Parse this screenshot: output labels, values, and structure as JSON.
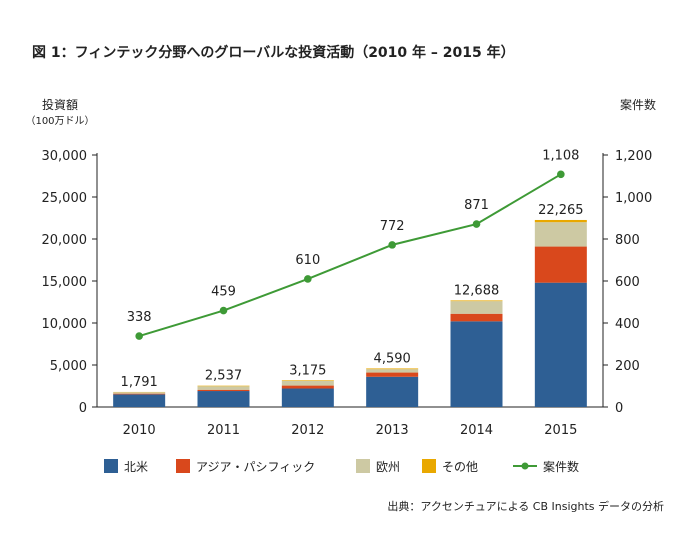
{
  "figure": {
    "title": "図 1：フィンテック分野へのグローバルな投資活動（2010 年 – 2015 年）",
    "source": "出典：アクセンチュアによる CB Insights データの分析"
  },
  "chart_data": {
    "type": "bar",
    "stacked": true,
    "categories": [
      "2010",
      "2011",
      "2012",
      "2013",
      "2014",
      "2015"
    ],
    "series": [
      {
        "name": "北米",
        "color": "#2e5f94",
        "values": [
          1500,
          1900,
          2200,
          3600,
          10200,
          14800
        ]
      },
      {
        "name": "アジア・パシフィック",
        "color": "#d9481c",
        "values": [
          90,
          150,
          350,
          500,
          900,
          4300
        ]
      },
      {
        "name": "欧州",
        "color": "#cdc9a3",
        "values": [
          170,
          420,
          550,
          400,
          1500,
          2900
        ]
      },
      {
        "name": "その他",
        "color": "#e9a800",
        "values": [
          31,
          67,
          75,
          90,
          88,
          265
        ]
      }
    ],
    "totals": [
      "1,791",
      "2,537",
      "3,175",
      "4,590",
      "12,688",
      "22,265"
    ],
    "line_series": {
      "name": "案件数",
      "color": "#3e9a36",
      "values": [
        338,
        459,
        610,
        772,
        871,
        1108
      ],
      "labels": [
        "338",
        "459",
        "610",
        "772",
        "871",
        "1,108"
      ]
    },
    "y_left": {
      "label": "投資額",
      "unit": "（100万ドル）",
      "ylim": [
        0,
        30000
      ],
      "ticks": [
        0,
        5000,
        10000,
        15000,
        20000,
        25000,
        30000
      ],
      "tick_labels": [
        "0",
        "5,000",
        "10,000",
        "15,000",
        "20,000",
        "25,000",
        "30,000"
      ]
    },
    "y_right": {
      "label": "案件数",
      "ylim": [
        0,
        1200
      ],
      "ticks": [
        0,
        200,
        400,
        600,
        800,
        1000,
        1200
      ],
      "tick_labels": [
        "0",
        "200",
        "400",
        "600",
        "800",
        "1,000",
        "1,200"
      ]
    },
    "legend_position": "bottom",
    "grid": false
  }
}
